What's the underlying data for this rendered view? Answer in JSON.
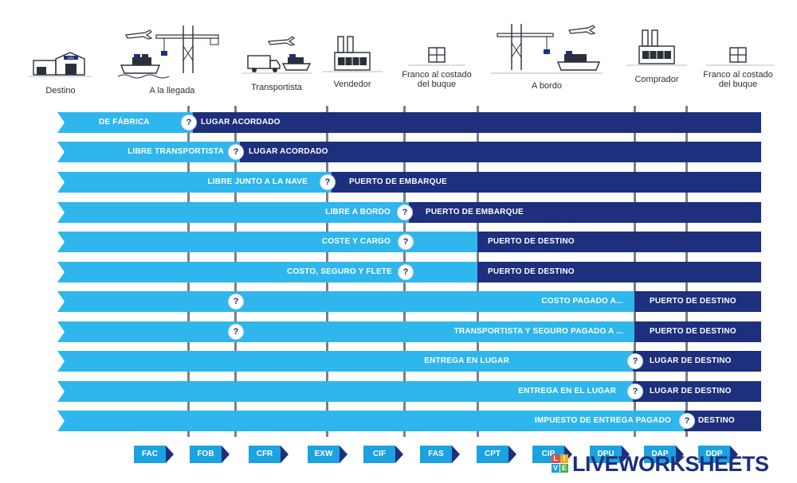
{
  "header": {
    "columns": [
      {
        "label": "Destino"
      },
      {
        "label": "A la llegada"
      },
      {
        "label": "Transportista"
      },
      {
        "label": "Vendedor"
      },
      {
        "label": "Franco al costado del buque"
      },
      {
        "label": "A bordo"
      },
      {
        "label": "Comprador"
      },
      {
        "label": "Franco al costado del buque"
      }
    ],
    "warehouse_sign": "DSV"
  },
  "rows": [
    {
      "left_label": "DE FÁBRICA",
      "right_label": "LUGAR ACORDADO",
      "marker": "?"
    },
    {
      "left_label": "LIBRE TRANSPORTISTA",
      "right_label": "LUGAR ACORDADO",
      "marker": "?"
    },
    {
      "left_label": "LIBRE JUNTO A LA NAVE",
      "right_label": "PUERTO DE EMBARQUE",
      "marker": "?"
    },
    {
      "left_label": "LIBRE A BORDO",
      "right_label": "PUERTO DE EMBARQUE",
      "marker": "?"
    },
    {
      "left_label": "COSTE Y CARGO",
      "right_label": "PUERTO DE DESTINO",
      "marker": "?"
    },
    {
      "left_label": "COSTO, SEGURO Y FLETE",
      "right_label": "PUERTO DE DESTINO",
      "marker": "?"
    },
    {
      "left_label": "COSTO PAGADO A...",
      "right_label": "PUERTO DE DESTINO",
      "marker": "?"
    },
    {
      "left_label": "TRANSPORTISTA Y SEGURO PAGADO A ...",
      "right_label": "PUERTO DE DESTINO",
      "marker": "?"
    },
    {
      "left_label": "ENTREGA EN LUGAR",
      "right_label": "LUGAR DE DESTINO",
      "marker": "?"
    },
    {
      "left_label": "ENTREGA EN EL LUGAR",
      "right_label": "LUGAR DE DESTINO",
      "marker": "?"
    },
    {
      "left_label": "IMPUESTO DE ENTREGA PAGADO",
      "right_label": "DESTINO",
      "marker": "?"
    }
  ],
  "chips": [
    {
      "label": "FAC"
    },
    {
      "label": "FOB"
    },
    {
      "label": "CFR"
    },
    {
      "label": "EXW"
    },
    {
      "label": "CIF"
    },
    {
      "label": "FAS"
    },
    {
      "label": "CPT"
    },
    {
      "label": "CIP"
    },
    {
      "label": "DPU"
    },
    {
      "label": "DAP"
    },
    {
      "label": "DDP"
    }
  ],
  "watermark": {
    "text": "LIVEWORKSHEETS",
    "logo_letters": [
      "L",
      "I",
      "V",
      "E"
    ]
  },
  "colors": {
    "light": "#2fb6ec",
    "dark": "#1d2f7d",
    "chip": "#1ba2e0",
    "grid": "#7b7e86"
  }
}
